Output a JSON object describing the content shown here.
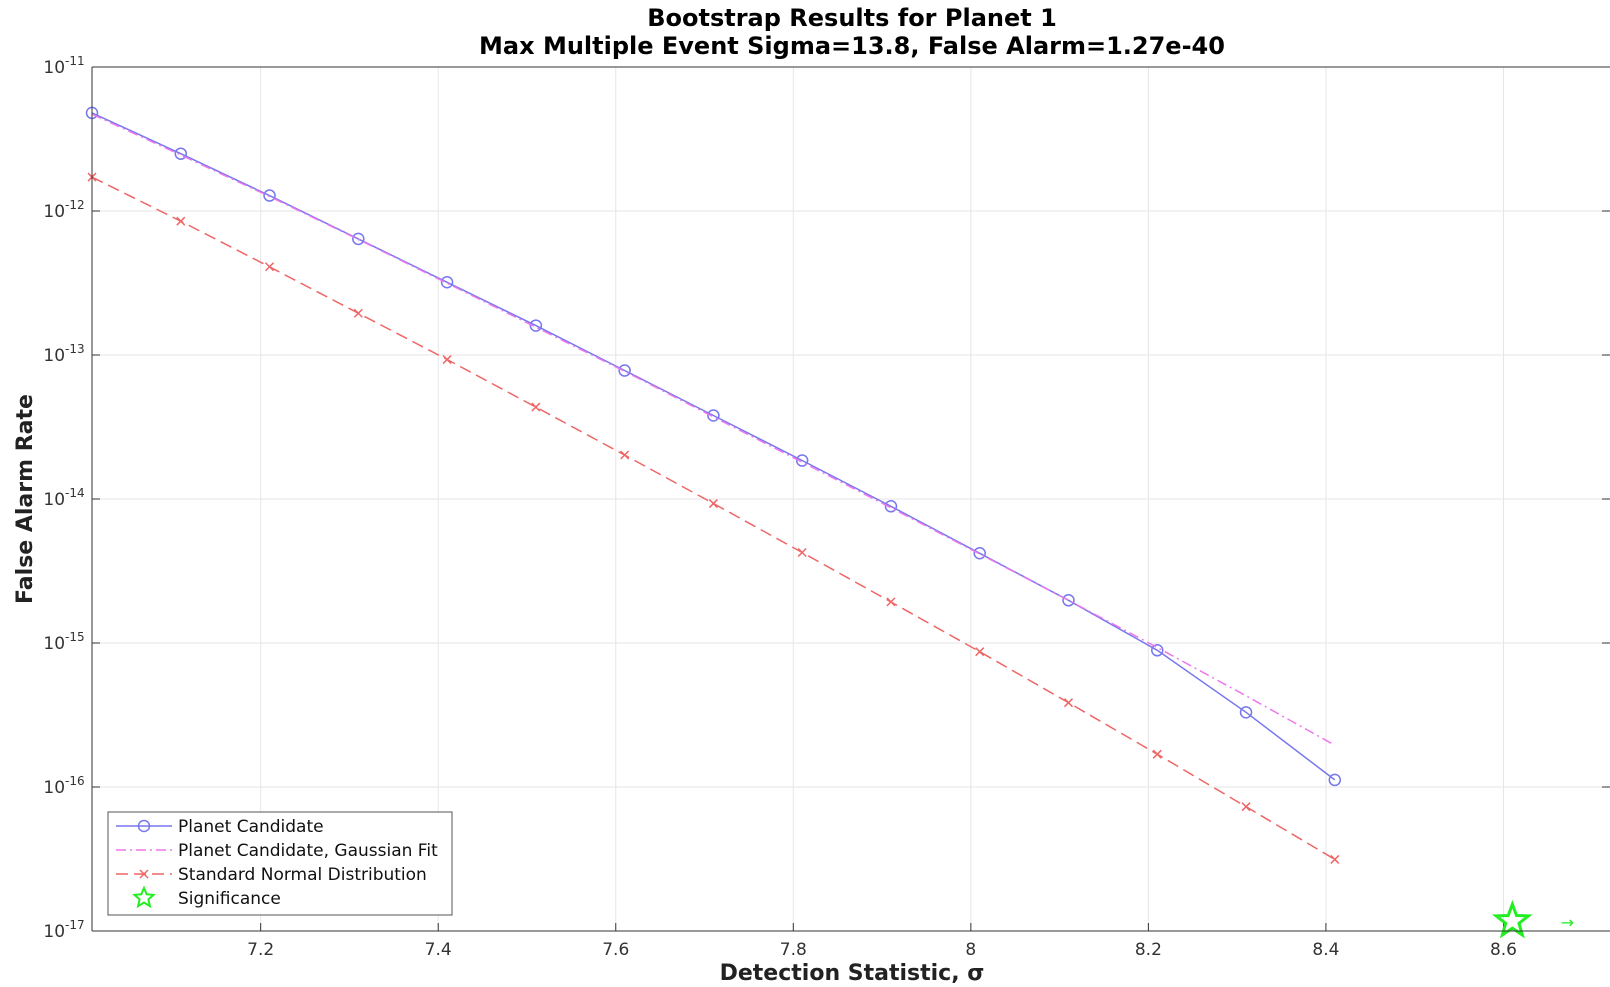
{
  "chart_data": {
    "type": "line",
    "title": "Bootstrap Results for Planet 1",
    "subtitle": "Max Multiple Event Sigma=13.8, False Alarm=1.27e-40",
    "xlabel": "Detection Statistic, σ",
    "ylabel": "False Alarm Rate",
    "xlim": [
      7.01,
      8.72
    ],
    "ylim": [
      1e-17,
      1e-11
    ],
    "yscale": "log",
    "grid": true,
    "legend_position": "bottom-left",
    "x_ticks": [
      "7.2",
      "7.4",
      "7.6",
      "7.8",
      "8",
      "8.2",
      "8.4",
      "8.6"
    ],
    "y_ticks": [
      {
        "base": "10",
        "exp": "-11"
      },
      {
        "base": "10",
        "exp": "-12"
      },
      {
        "base": "10",
        "exp": "-13"
      },
      {
        "base": "10",
        "exp": "-14"
      },
      {
        "base": "10",
        "exp": "-15"
      },
      {
        "base": "10",
        "exp": "-16"
      },
      {
        "base": "10",
        "exp": "-17"
      }
    ],
    "series": [
      {
        "name": "Planet Candidate",
        "color": "#7777ee",
        "line": "solid",
        "marker": "circle",
        "x": [
          7.01,
          7.11,
          7.21,
          7.31,
          7.41,
          7.51,
          7.61,
          7.71,
          7.81,
          7.91,
          8.01,
          8.11,
          8.21,
          8.31,
          8.41
        ],
        "y": [
          4.8e-12,
          2.5e-12,
          1.28e-12,
          6.4e-13,
          3.2e-13,
          1.6e-13,
          7.8e-14,
          3.8e-14,
          1.85e-14,
          8.9e-15,
          4.2e-15,
          1.98e-15,
          8.9e-16,
          3.3e-16,
          1.12e-16
        ]
      },
      {
        "name": "Planet Candidate, Gaussian Fit",
        "color": "#ee77ee",
        "line": "dashdot",
        "marker": "none",
        "x": [
          7.01,
          7.11,
          7.21,
          7.31,
          7.41,
          7.51,
          7.61,
          7.71,
          7.81,
          7.91,
          8.01,
          8.11,
          8.21,
          8.31,
          8.41
        ],
        "y": [
          4.7e-12,
          2.45e-12,
          1.26e-12,
          6.35e-13,
          3.15e-13,
          1.56e-13,
          7.7e-14,
          3.72e-14,
          1.8e-14,
          8.7e-15,
          4.15e-15,
          1.98e-15,
          9.3e-16,
          4.3e-16,
          1.95e-16
        ]
      },
      {
        "name": "Standard Normal Distribution",
        "color": "#ee6666",
        "line": "dashed",
        "marker": "x",
        "x": [
          7.01,
          7.11,
          7.21,
          7.31,
          7.41,
          7.51,
          7.61,
          7.71,
          7.81,
          7.91,
          8.01,
          8.11,
          8.21,
          8.31,
          8.41
        ],
        "y": [
          1.72e-12,
          8.5e-13,
          4.1e-13,
          1.95e-13,
          9.3e-14,
          4.35e-14,
          2.02e-14,
          9.3e-15,
          4.25e-15,
          1.93e-15,
          8.7e-16,
          3.85e-16,
          1.69e-16,
          7.3e-17,
          3.14e-17
        ]
      },
      {
        "name": "Significance",
        "color": "#22ee22",
        "line": "none",
        "marker": "star",
        "x": [
          8.61
        ],
        "y": [
          1.17e-17
        ],
        "annotation": "→"
      }
    ]
  }
}
